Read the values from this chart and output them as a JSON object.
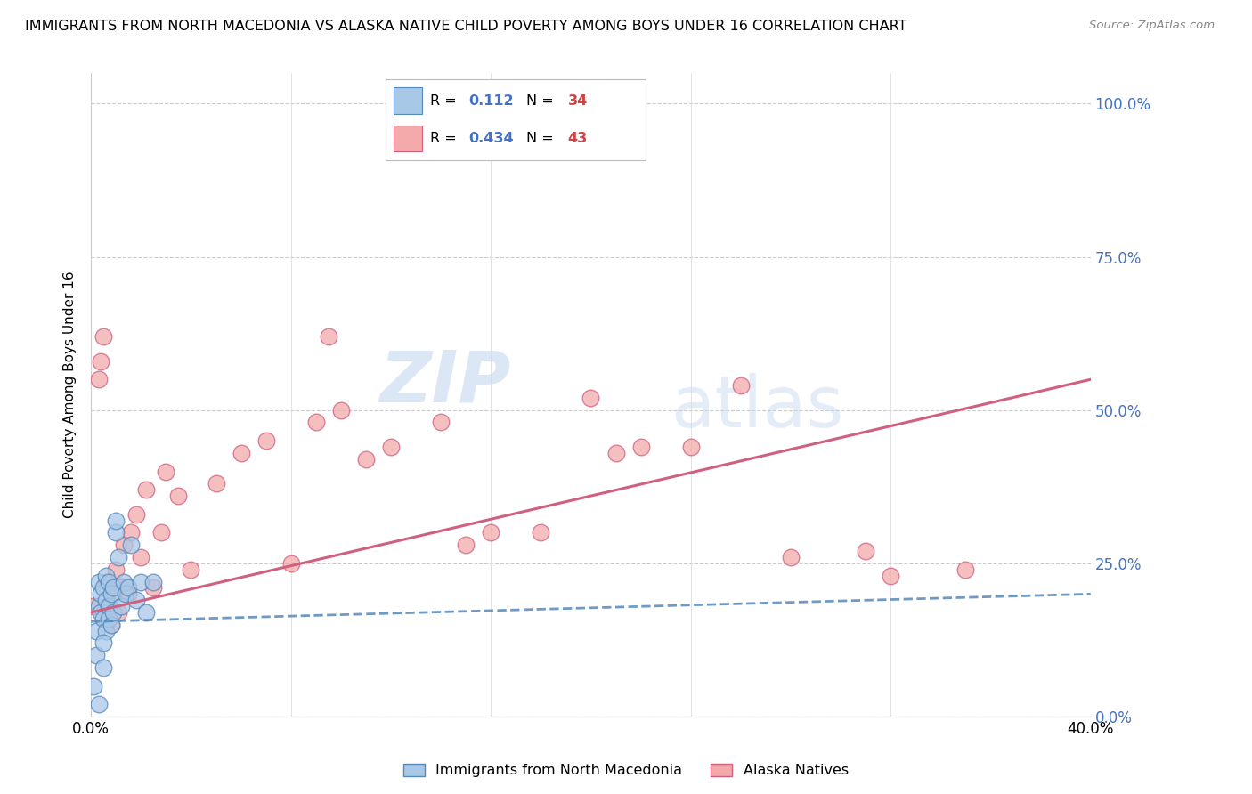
{
  "title": "IMMIGRANTS FROM NORTH MACEDONIA VS ALASKA NATIVE CHILD POVERTY AMONG BOYS UNDER 16 CORRELATION CHART",
  "source": "Source: ZipAtlas.com",
  "ylabel": "Child Poverty Among Boys Under 16",
  "xlim": [
    0.0,
    0.4
  ],
  "ylim": [
    0.0,
    1.05
  ],
  "yticks": [
    0.0,
    0.25,
    0.5,
    0.75,
    1.0
  ],
  "ytick_labels": [
    "0.0%",
    "25.0%",
    "50.0%",
    "75.0%",
    "100.0%"
  ],
  "xticks": [
    0.0,
    0.08,
    0.16,
    0.24,
    0.32,
    0.4
  ],
  "xtick_labels": [
    "0.0%",
    "",
    "",
    "",
    "",
    "40.0%"
  ],
  "watermark_zip": "ZIP",
  "watermark_atlas": "atlas",
  "legend_r_blue": "0.112",
  "legend_n_blue": "34",
  "legend_r_pink": "0.434",
  "legend_n_pink": "43",
  "blue_fill": "#a8c8e8",
  "blue_edge": "#5588bb",
  "pink_fill": "#f4aaaa",
  "pink_edge": "#d06080",
  "blue_line_color": "#5588bb",
  "pink_line_color": "#d06080",
  "blue_scatter_x": [
    0.001,
    0.002,
    0.002,
    0.003,
    0.003,
    0.004,
    0.004,
    0.005,
    0.005,
    0.005,
    0.006,
    0.006,
    0.006,
    0.007,
    0.007,
    0.007,
    0.008,
    0.008,
    0.009,
    0.009,
    0.01,
    0.01,
    0.011,
    0.012,
    0.013,
    0.014,
    0.015,
    0.016,
    0.018,
    0.02,
    0.022,
    0.025,
    0.005,
    0.003
  ],
  "blue_scatter_y": [
    0.05,
    0.1,
    0.14,
    0.18,
    0.22,
    0.17,
    0.2,
    0.08,
    0.16,
    0.21,
    0.14,
    0.19,
    0.23,
    0.18,
    0.22,
    0.16,
    0.2,
    0.15,
    0.17,
    0.21,
    0.3,
    0.32,
    0.26,
    0.18,
    0.22,
    0.2,
    0.21,
    0.28,
    0.19,
    0.22,
    0.17,
    0.22,
    0.12,
    0.02
  ],
  "pink_scatter_x": [
    0.001,
    0.003,
    0.004,
    0.005,
    0.006,
    0.008,
    0.009,
    0.01,
    0.011,
    0.012,
    0.013,
    0.015,
    0.016,
    0.018,
    0.02,
    0.022,
    0.025,
    0.028,
    0.03,
    0.035,
    0.04,
    0.05,
    0.06,
    0.07,
    0.08,
    0.09,
    0.1,
    0.11,
    0.12,
    0.14,
    0.15,
    0.16,
    0.18,
    0.2,
    0.21,
    0.22,
    0.24,
    0.26,
    0.28,
    0.31,
    0.32,
    0.35,
    0.095
  ],
  "pink_scatter_y": [
    0.18,
    0.55,
    0.58,
    0.62,
    0.22,
    0.15,
    0.2,
    0.24,
    0.17,
    0.21,
    0.28,
    0.2,
    0.3,
    0.33,
    0.26,
    0.37,
    0.21,
    0.3,
    0.4,
    0.36,
    0.24,
    0.38,
    0.43,
    0.45,
    0.25,
    0.48,
    0.5,
    0.42,
    0.44,
    0.48,
    0.28,
    0.3,
    0.3,
    0.52,
    0.43,
    0.44,
    0.44,
    0.54,
    0.26,
    0.27,
    0.23,
    0.24,
    0.62
  ],
  "blue_line_x0": 0.0,
  "blue_line_y0": 0.155,
  "blue_line_x1": 0.4,
  "blue_line_y1": 0.2,
  "pink_line_x0": 0.0,
  "pink_line_y0": 0.17,
  "pink_line_x1": 0.4,
  "pink_line_y1": 0.55
}
